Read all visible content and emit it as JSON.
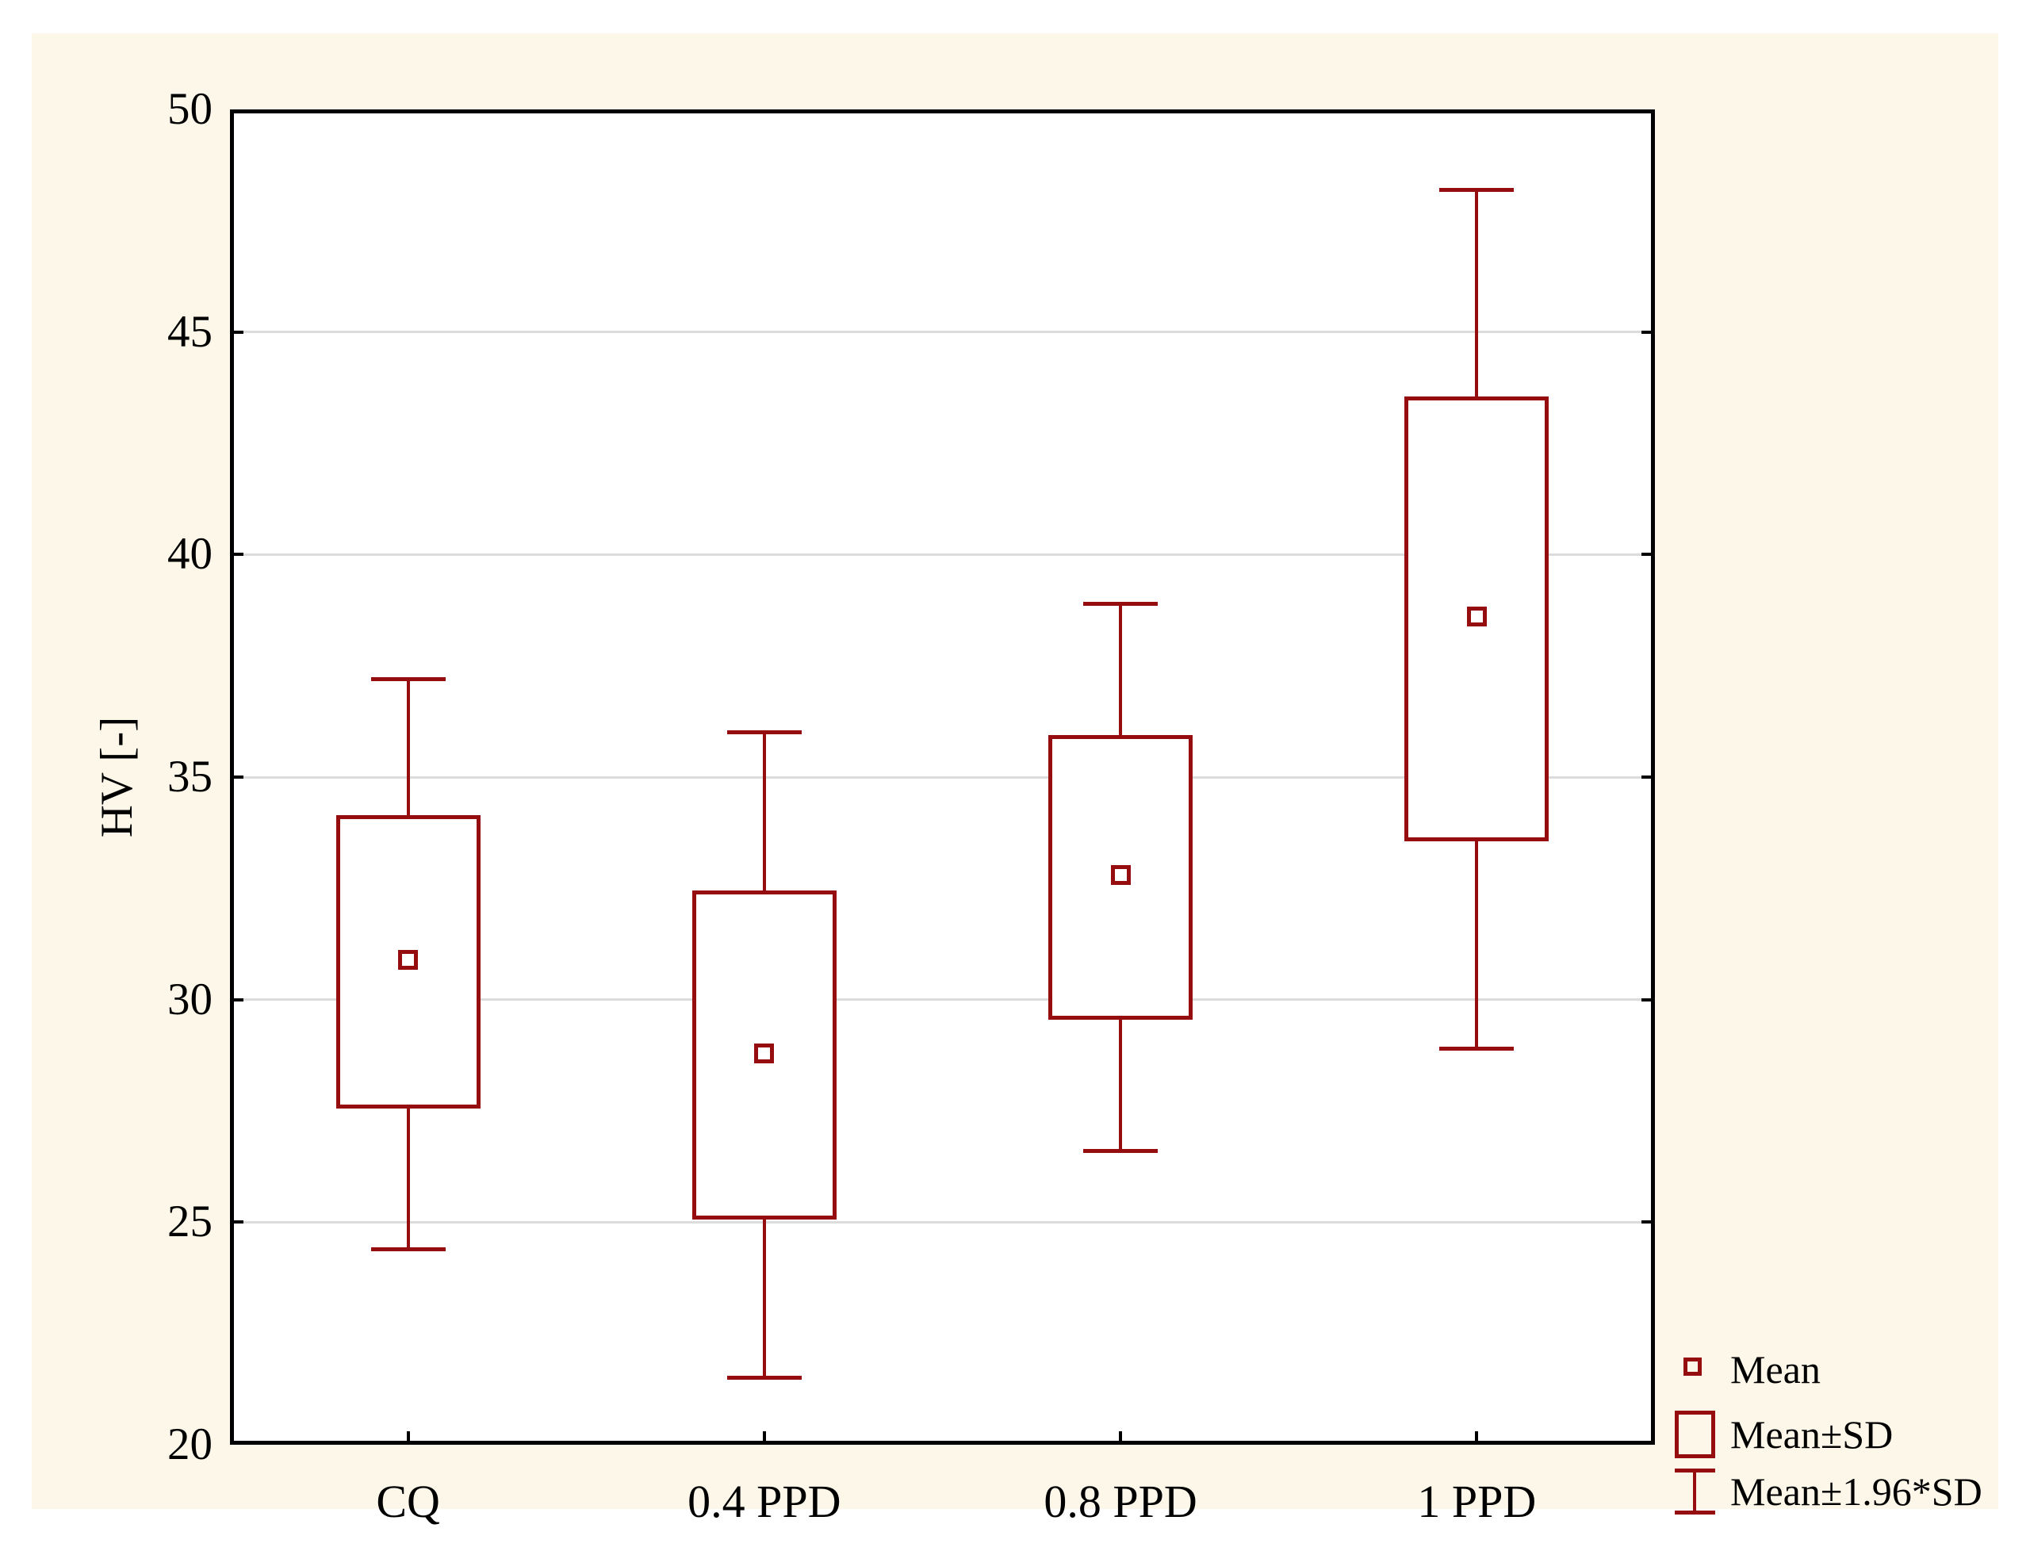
{
  "chart_data": {
    "type": "box",
    "subtype": "mean-sd-whisker",
    "title": "",
    "ylabel": "HV [-]",
    "xlabel": "",
    "ylim": [
      20,
      50
    ],
    "yticks": [
      20,
      25,
      30,
      35,
      40,
      45,
      50
    ],
    "grid": "horizontal",
    "legend_position": "bottom-right",
    "categories": [
      "CQ",
      "0.4 PPD",
      "0.8 PPD",
      "1 PPD"
    ],
    "series": [
      {
        "category": "CQ",
        "mean": 30.9,
        "mean_minus_sd": 27.6,
        "mean_plus_sd": 34.1,
        "mean_minus_196sd": 24.4,
        "mean_plus_196sd": 37.2
      },
      {
        "category": "0.4 PPD",
        "mean": 28.8,
        "mean_minus_sd": 25.1,
        "mean_plus_sd": 32.4,
        "mean_minus_196sd": 21.5,
        "mean_plus_196sd": 36.0
      },
      {
        "category": "0.8 PPD",
        "mean": 32.8,
        "mean_minus_sd": 29.6,
        "mean_plus_sd": 35.9,
        "mean_minus_196sd": 26.6,
        "mean_plus_196sd": 38.9
      },
      {
        "category": "1 PPD",
        "mean": 38.6,
        "mean_minus_sd": 33.6,
        "mean_plus_sd": 43.5,
        "mean_minus_196sd": 28.9,
        "mean_plus_196sd": 48.2
      }
    ],
    "legend": [
      {
        "symbol": "mean-square-icon",
        "label": "Mean"
      },
      {
        "symbol": "sd-box-icon",
        "label": "Mean±SD"
      },
      {
        "symbol": "whisker-ibeam-icon",
        "label": "Mean±1.96*SD"
      }
    ],
    "colors": {
      "series": "#960D0F",
      "canvas_background": "#FCF7E8",
      "plot_background": "#FFFFFF",
      "gridline": "#DCDCDC",
      "axis": "#000000",
      "text": "#000000"
    }
  }
}
